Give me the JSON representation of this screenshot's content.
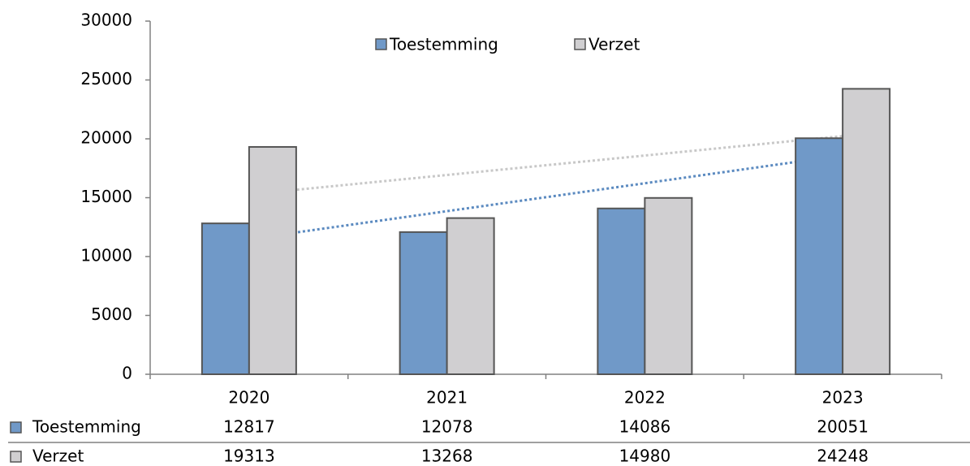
{
  "chart_data": {
    "type": "bar",
    "categories": [
      "2020",
      "2021",
      "2022",
      "2023"
    ],
    "series": [
      {
        "name": "Toestemming",
        "color": "#7099c8",
        "values": [
          12817,
          12078,
          14086,
          20051
        ]
      },
      {
        "name": "Verzet",
        "color": "#d0cfd1",
        "values": [
          19313,
          13268,
          14980,
          24248
        ]
      }
    ],
    "ylim": [
      0,
      30000
    ],
    "yticks": [
      0,
      5000,
      10000,
      15000,
      20000,
      25000,
      30000
    ],
    "grid": false,
    "legend": "top",
    "trendline": true,
    "data_table": true
  }
}
